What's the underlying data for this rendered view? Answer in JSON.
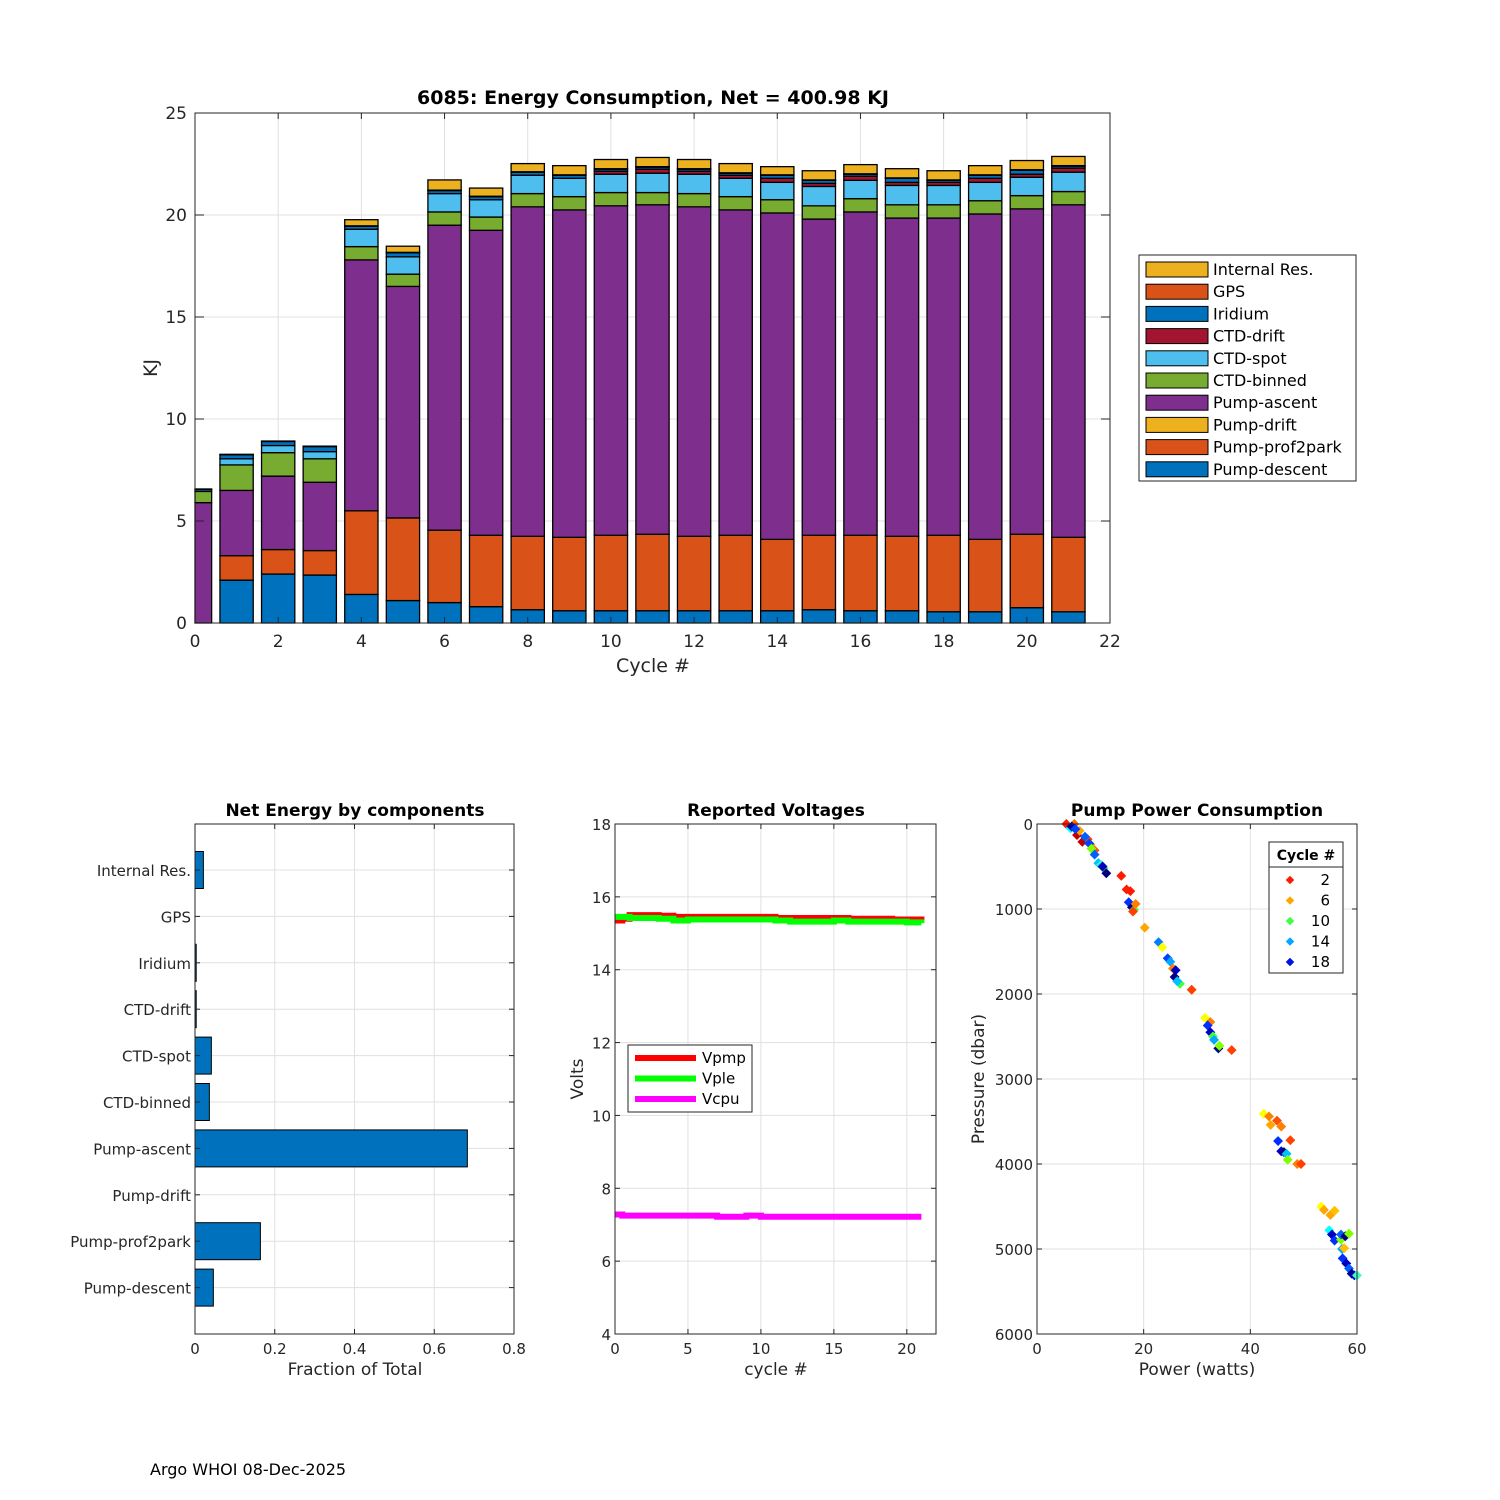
{
  "footer": "Argo WHOI 08-Dec-2025",
  "chart_data": [
    {
      "type": "bar",
      "stacked": true,
      "title": "6085: Energy Consumption,  Net = 400.98 KJ",
      "xlabel": "Cycle #",
      "ylabel": "KJ",
      "xlim": [
        0,
        22
      ],
      "ylim": [
        0,
        25
      ],
      "xticks": [
        0,
        2,
        4,
        6,
        8,
        10,
        12,
        14,
        16,
        18,
        20,
        22
      ],
      "yticks": [
        0,
        5,
        10,
        15,
        20,
        25
      ],
      "grid": true,
      "legend_position": "right-outside",
      "categories": [
        0,
        1,
        2,
        3,
        4,
        5,
        6,
        7,
        8,
        9,
        10,
        11,
        12,
        13,
        14,
        15,
        16,
        17,
        18,
        19,
        20,
        21
      ],
      "series": [
        {
          "name": "Pump-descent",
          "color": "#0072BD",
          "values": [
            0,
            2.1,
            2.4,
            2.35,
            1.4,
            1.1,
            1.0,
            0.8,
            0.65,
            0.6,
            0.6,
            0.6,
            0.6,
            0.6,
            0.6,
            0.65,
            0.6,
            0.6,
            0.55,
            0.55,
            0.75,
            0.55
          ]
        },
        {
          "name": "Pump-prof2park",
          "color": "#D95319",
          "values": [
            0,
            1.2,
            1.2,
            1.2,
            4.1,
            4.05,
            3.55,
            3.5,
            3.6,
            3.6,
            3.7,
            3.75,
            3.65,
            3.7,
            3.5,
            3.65,
            3.7,
            3.65,
            3.75,
            3.55,
            3.6,
            3.65
          ]
        },
        {
          "name": "Pump-drift",
          "color": "#EDB120",
          "values": [
            0,
            0,
            0,
            0,
            0,
            0,
            0,
            0,
            0,
            0,
            0,
            0,
            0,
            0,
            0,
            0,
            0,
            0,
            0,
            0,
            0,
            0
          ]
        },
        {
          "name": "Pump-ascent",
          "color": "#7E2F8E",
          "values": [
            5.9,
            3.2,
            3.6,
            3.35,
            12.3,
            11.35,
            14.95,
            14.95,
            16.15,
            16.05,
            16.15,
            16.15,
            16.15,
            15.95,
            16.0,
            15.5,
            15.85,
            15.6,
            15.55,
            15.95,
            15.95,
            16.3
          ]
        },
        {
          "name": "CTD-binned",
          "color": "#77AC30",
          "values": [
            0.55,
            1.25,
            1.15,
            1.15,
            0.65,
            0.6,
            0.65,
            0.65,
            0.65,
            0.65,
            0.65,
            0.6,
            0.65,
            0.65,
            0.65,
            0.65,
            0.65,
            0.65,
            0.65,
            0.65,
            0.65,
            0.65
          ]
        },
        {
          "name": "CTD-spot",
          "color": "#4DBEEE",
          "values": [
            0,
            0.3,
            0.35,
            0.35,
            0.85,
            0.85,
            0.9,
            0.85,
            0.9,
            0.9,
            0.9,
            0.95,
            0.95,
            0.9,
            0.85,
            0.95,
            0.9,
            0.95,
            0.95,
            0.9,
            0.9,
            0.95
          ]
        },
        {
          "name": "CTD-drift",
          "color": "#A2142F",
          "values": [
            0,
            0,
            0,
            0,
            0,
            0,
            0,
            0,
            0,
            0,
            0.15,
            0.2,
            0.15,
            0.15,
            0.2,
            0.15,
            0.2,
            0.15,
            0.15,
            0.2,
            0.15,
            0.2
          ]
        },
        {
          "name": "Iridium",
          "color": "#0072BD",
          "values": [
            0.1,
            0.2,
            0.2,
            0.25,
            0.15,
            0.2,
            0.15,
            0.15,
            0.15,
            0.15,
            0.1,
            0.1,
            0.1,
            0.1,
            0.15,
            0.15,
            0.1,
            0.2,
            0.1,
            0.15,
            0.2,
            0.1
          ]
        },
        {
          "name": "GPS",
          "color": "#D95319",
          "values": [
            0.02,
            0.02,
            0.02,
            0.02,
            0.02,
            0.02,
            0.02,
            0.02,
            0.02,
            0.02,
            0.02,
            0.02,
            0.02,
            0.02,
            0.02,
            0.02,
            0.02,
            0.02,
            0.02,
            0.02,
            0.02,
            0.02
          ]
        },
        {
          "name": "Internal Res.",
          "color": "#EDB120",
          "values": [
            0,
            0,
            0,
            0,
            0.3,
            0.3,
            0.5,
            0.4,
            0.4,
            0.45,
            0.45,
            0.45,
            0.45,
            0.45,
            0.4,
            0.45,
            0.45,
            0.45,
            0.45,
            0.45,
            0.45,
            0.45
          ]
        }
      ],
      "legend": [
        "Internal Res.",
        "GPS",
        "Iridium",
        "CTD-drift",
        "CTD-spot",
        "CTD-binned",
        "Pump-ascent",
        "Pump-drift",
        "Pump-prof2park",
        "Pump-descent"
      ]
    },
    {
      "type": "bar",
      "orientation": "horizontal",
      "title": "Net Energy by components",
      "xlabel": "Fraction of Total",
      "ylabel": "",
      "xlim": [
        0,
        0.8
      ],
      "xticks": [
        0,
        0.2,
        0.4,
        0.6,
        0.8
      ],
      "grid": true,
      "color": "#0072BD",
      "categories": [
        "Internal Res.",
        "GPS",
        "Iridium",
        "CTD-drift",
        "CTD-spot",
        "CTD-binned",
        "Pump-ascent",
        "Pump-drift",
        "Pump-prof2park",
        "Pump-descent"
      ],
      "values": [
        0.021,
        0.0,
        0.003,
        0.003,
        0.041,
        0.036,
        0.683,
        0.0,
        0.164,
        0.046
      ]
    },
    {
      "type": "line",
      "title": "Reported Voltages",
      "xlabel": "cycle #",
      "ylabel": "Volts",
      "xlim": [
        0,
        22
      ],
      "ylim": [
        4,
        18
      ],
      "xticks": [
        0,
        5,
        10,
        15,
        20
      ],
      "yticks": [
        4,
        6,
        8,
        10,
        12,
        14,
        16,
        18
      ],
      "grid": true,
      "legend_position": "center-left",
      "series": [
        {
          "name": "Vpmp",
          "color": "#FF0000",
          "x": [
            0,
            0.5,
            1,
            2,
            3,
            4,
            5,
            6,
            7,
            8,
            9,
            10,
            11,
            12,
            13,
            14,
            15,
            16,
            17,
            18,
            19,
            20,
            21
          ],
          "values": [
            15.35,
            15.4,
            15.5,
            15.5,
            15.48,
            15.45,
            15.45,
            15.45,
            15.45,
            15.45,
            15.45,
            15.45,
            15.42,
            15.42,
            15.42,
            15.42,
            15.42,
            15.4,
            15.4,
            15.4,
            15.38,
            15.38,
            15.35
          ]
        },
        {
          "name": "Vple",
          "color": "#00FF00",
          "x": [
            0,
            0.5,
            1,
            2,
            3,
            4,
            5,
            6,
            7,
            8,
            9,
            10,
            11,
            12,
            13,
            14,
            15,
            16,
            17,
            18,
            19,
            20,
            21
          ],
          "values": [
            15.45,
            15.45,
            15.42,
            15.42,
            15.4,
            15.35,
            15.38,
            15.38,
            15.38,
            15.38,
            15.38,
            15.38,
            15.35,
            15.32,
            15.32,
            15.32,
            15.35,
            15.32,
            15.32,
            15.32,
            15.32,
            15.3,
            15.28
          ]
        },
        {
          "name": "Vcpu",
          "color": "#FF00FF",
          "x": [
            0,
            0.5,
            1,
            2,
            3,
            4,
            5,
            6,
            7,
            8,
            9,
            10,
            11,
            12,
            13,
            14,
            15,
            16,
            17,
            18,
            19,
            20,
            21
          ],
          "values": [
            7.28,
            7.25,
            7.25,
            7.25,
            7.25,
            7.25,
            7.25,
            7.25,
            7.22,
            7.22,
            7.25,
            7.22,
            7.22,
            7.22,
            7.22,
            7.22,
            7.22,
            7.22,
            7.22,
            7.22,
            7.22,
            7.22,
            7.22
          ]
        }
      ]
    },
    {
      "type": "scatter",
      "title": "Pump Power Consumption",
      "xlabel": "Power (watts)",
      "ylabel": "Pressure (dbar)",
      "xlim": [
        0,
        60
      ],
      "ylim": [
        6000,
        0
      ],
      "xticks": [
        0,
        20,
        40,
        60
      ],
      "yticks": [
        0,
        1000,
        2000,
        3000,
        4000,
        5000,
        6000
      ],
      "y_reversed": true,
      "grid": true,
      "legend_title": "Cycle #",
      "legend_position": "top-right",
      "legend": [
        {
          "label": "2",
          "color": "#FF1A00"
        },
        {
          "label": "6",
          "color": "#FFA500"
        },
        {
          "label": "10",
          "color": "#40FF40"
        },
        {
          "label": "14",
          "color": "#00A8FF"
        },
        {
          "label": "18",
          "color": "#0010E0"
        }
      ],
      "points": [
        {
          "x": 5.5,
          "y": 0,
          "c": "#FF1A00"
        },
        {
          "x": 6.3,
          "y": 50,
          "c": "#00FFFF"
        },
        {
          "x": 7.0,
          "y": 0,
          "c": "#FF6600"
        },
        {
          "x": 7.5,
          "y": 130,
          "c": "#C00000"
        },
        {
          "x": 8.0,
          "y": 80,
          "c": "#FFA500"
        },
        {
          "x": 6.5,
          "y": 30,
          "c": "#0000A0"
        },
        {
          "x": 7.2,
          "y": 60,
          "c": "#0040FF"
        },
        {
          "x": 8.5,
          "y": 210,
          "c": "#C00000"
        },
        {
          "x": 9.5,
          "y": 180,
          "c": "#FF4000"
        },
        {
          "x": 10,
          "y": 240,
          "c": "#FF8000"
        },
        {
          "x": 9.8,
          "y": 230,
          "c": "#0040FF"
        },
        {
          "x": 9.0,
          "y": 150,
          "c": "#0060FF"
        },
        {
          "x": 10.8,
          "y": 310,
          "c": "#FF5000"
        },
        {
          "x": 10.2,
          "y": 290,
          "c": "#80FF00"
        },
        {
          "x": 10.8,
          "y": 360,
          "c": "#0060FF"
        },
        {
          "x": 11.5,
          "y": 460,
          "c": "#00C0FF"
        },
        {
          "x": 12.0,
          "y": 480,
          "c": "#20FFC0"
        },
        {
          "x": 12.5,
          "y": 520,
          "c": "#40FF40"
        },
        {
          "x": 12.3,
          "y": 500,
          "c": "#0000C0"
        },
        {
          "x": 13,
          "y": 580,
          "c": "#000080"
        },
        {
          "x": 15.8,
          "y": 610,
          "c": "#FF1A00"
        },
        {
          "x": 16.8,
          "y": 770,
          "c": "#FF1A00"
        },
        {
          "x": 17.5,
          "y": 790,
          "c": "#FF1A00"
        },
        {
          "x": 17.2,
          "y": 920,
          "c": "#0030FF"
        },
        {
          "x": 17.8,
          "y": 980,
          "c": "#000080"
        },
        {
          "x": 18.2,
          "y": 1010,
          "c": "#40FF40"
        },
        {
          "x": 18.5,
          "y": 940,
          "c": "#FF8000"
        },
        {
          "x": 18.0,
          "y": 1030,
          "c": "#FF4000"
        },
        {
          "x": 20.2,
          "y": 1220,
          "c": "#FFA500"
        },
        {
          "x": 22.8,
          "y": 1390,
          "c": "#0080FF"
        },
        {
          "x": 23.5,
          "y": 1450,
          "c": "#FFFF00"
        },
        {
          "x": 24.5,
          "y": 1580,
          "c": "#0040FF"
        },
        {
          "x": 25.0,
          "y": 1620,
          "c": "#00A8FF"
        },
        {
          "x": 25.5,
          "y": 1700,
          "c": "#FF8000"
        },
        {
          "x": 26.0,
          "y": 1720,
          "c": "#0000C0"
        },
        {
          "x": 25.8,
          "y": 1800,
          "c": "#000080"
        },
        {
          "x": 26.8,
          "y": 1880,
          "c": "#40FF40"
        },
        {
          "x": 26.3,
          "y": 1850,
          "c": "#00C0FF"
        },
        {
          "x": 29.0,
          "y": 1950,
          "c": "#FF4000"
        },
        {
          "x": 31.5,
          "y": 2280,
          "c": "#FFFF00"
        },
        {
          "x": 32.5,
          "y": 2330,
          "c": "#FF8000"
        },
        {
          "x": 32.0,
          "y": 2370,
          "c": "#0030FF"
        },
        {
          "x": 32.5,
          "y": 2450,
          "c": "#0000C0"
        },
        {
          "x": 33.0,
          "y": 2500,
          "c": "#40FF40"
        },
        {
          "x": 33.2,
          "y": 2540,
          "c": "#00A8FF"
        },
        {
          "x": 34.0,
          "y": 2640,
          "c": "#000080"
        },
        {
          "x": 34.2,
          "y": 2610,
          "c": "#80FF00"
        },
        {
          "x": 36.5,
          "y": 2660,
          "c": "#FF4000"
        },
        {
          "x": 42.5,
          "y": 3410,
          "c": "#FFFF00"
        },
        {
          "x": 43.5,
          "y": 3440,
          "c": "#FF8000"
        },
        {
          "x": 43.8,
          "y": 3540,
          "c": "#FFA500"
        },
        {
          "x": 45.0,
          "y": 3490,
          "c": "#FF5000"
        },
        {
          "x": 45.8,
          "y": 3560,
          "c": "#FF8000"
        },
        {
          "x": 47.5,
          "y": 3720,
          "c": "#FF4000"
        },
        {
          "x": 45.2,
          "y": 3730,
          "c": "#0030FF"
        },
        {
          "x": 45.8,
          "y": 3850,
          "c": "#0000C0"
        },
        {
          "x": 46.3,
          "y": 3860,
          "c": "#000080"
        },
        {
          "x": 46.8,
          "y": 3880,
          "c": "#00C0FF"
        },
        {
          "x": 47.0,
          "y": 3950,
          "c": "#80FF00"
        },
        {
          "x": 48.8,
          "y": 4000,
          "c": "#FF8000"
        },
        {
          "x": 49.5,
          "y": 4000,
          "c": "#FF4000"
        },
        {
          "x": 53.3,
          "y": 4500,
          "c": "#FFFF00"
        },
        {
          "x": 53.8,
          "y": 4540,
          "c": "#FFA500"
        },
        {
          "x": 55.0,
          "y": 4600,
          "c": "#FFA500"
        },
        {
          "x": 55.8,
          "y": 4550,
          "c": "#FFC000"
        },
        {
          "x": 54.8,
          "y": 4780,
          "c": "#00FFFF"
        },
        {
          "x": 55.3,
          "y": 4830,
          "c": "#0000C0"
        },
        {
          "x": 55.8,
          "y": 4900,
          "c": "#0030FF"
        },
        {
          "x": 57.0,
          "y": 4890,
          "c": "#80FF00"
        },
        {
          "x": 57.0,
          "y": 4830,
          "c": "#0060FF"
        },
        {
          "x": 57.8,
          "y": 4850,
          "c": "#000080"
        },
        {
          "x": 58.5,
          "y": 4820,
          "c": "#80FF00"
        },
        {
          "x": 57.2,
          "y": 5000,
          "c": "#00A8FF"
        },
        {
          "x": 57.6,
          "y": 4990,
          "c": "#FFC000"
        },
        {
          "x": 57.3,
          "y": 5110,
          "c": "#0030FF"
        },
        {
          "x": 58.0,
          "y": 5170,
          "c": "#0000C0"
        },
        {
          "x": 58.5,
          "y": 5230,
          "c": "#0060FF"
        },
        {
          "x": 59.0,
          "y": 5290,
          "c": "#000080"
        },
        {
          "x": 59.5,
          "y": 5310,
          "c": "#0000C0"
        },
        {
          "x": 60.0,
          "y": 5310,
          "c": "#40FFC0"
        }
      ]
    }
  ]
}
